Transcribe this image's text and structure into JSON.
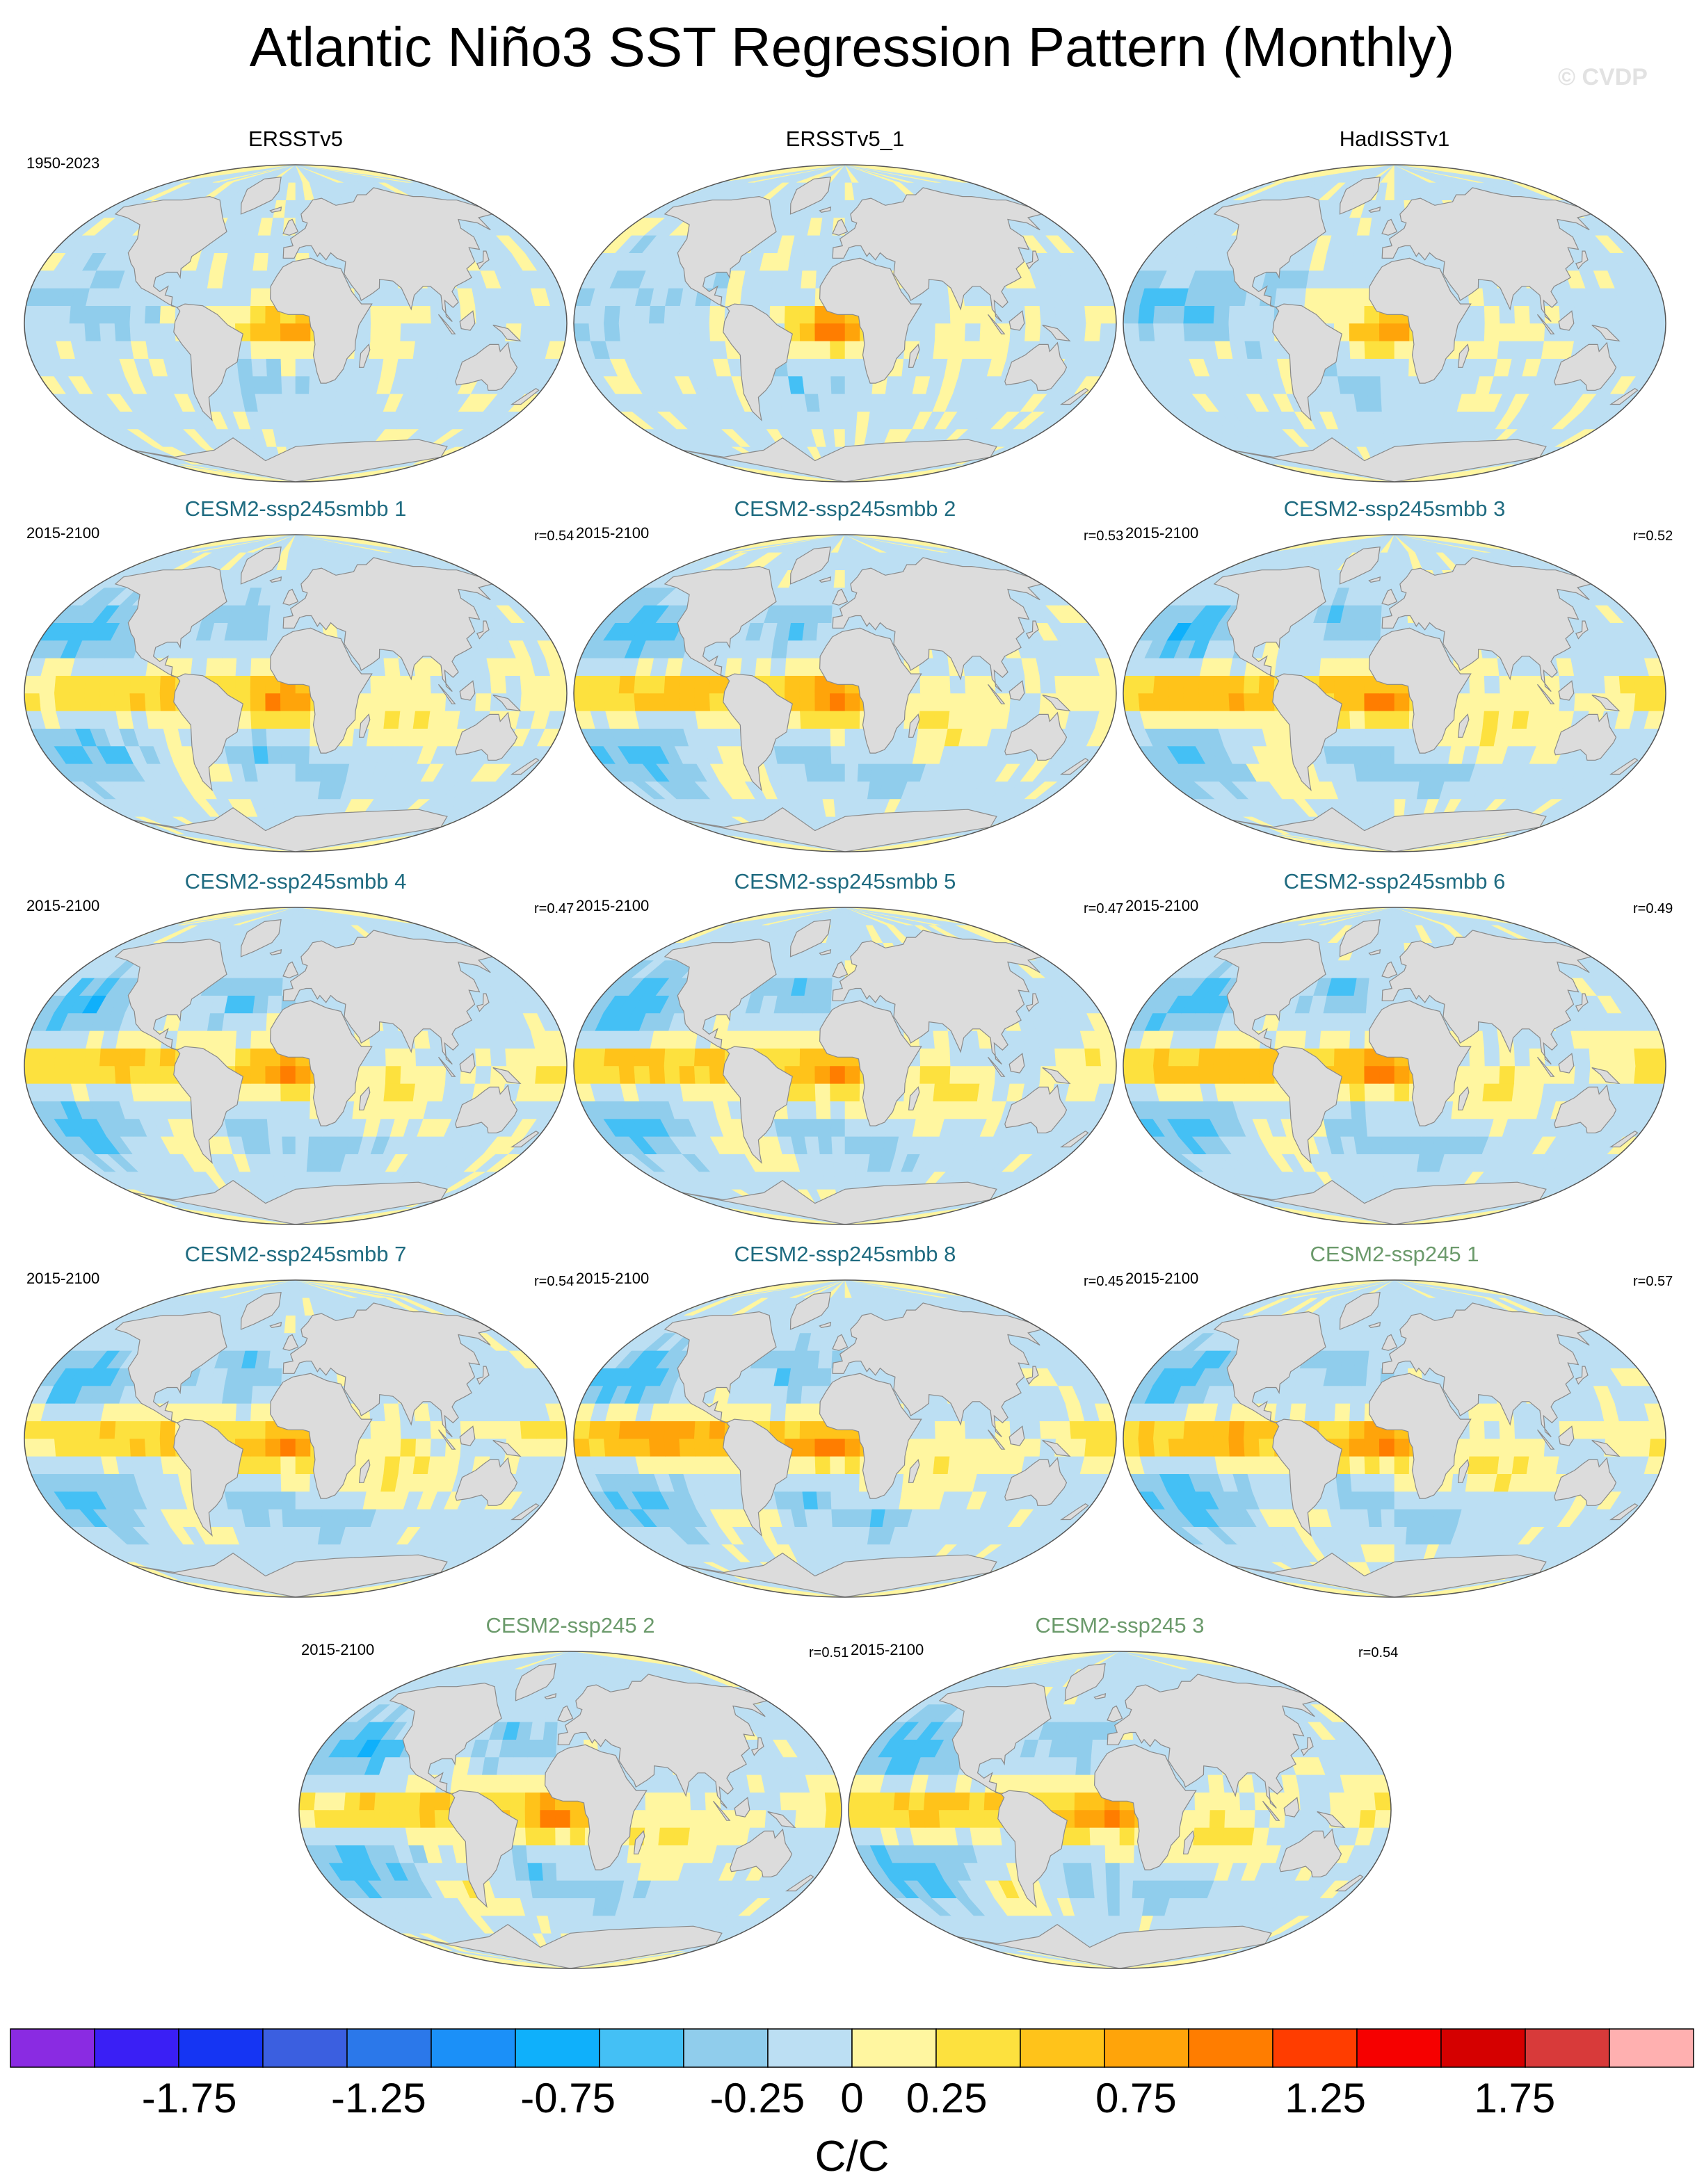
{
  "title": "Atlantic Niño3 SST Regression Pattern (Monthly)",
  "copyright": "© CVDP",
  "colors": {
    "observed_title": "#000000",
    "smbb_title": "#1f6b80",
    "ssp245_title": "#6b9a6b",
    "land": "#dcdcdc",
    "coast": "#8a8a8a"
  },
  "panels": [
    {
      "title": "ERSSTv5",
      "period": "1950-2023",
      "r": "",
      "group": "obs",
      "variant": 0
    },
    {
      "title": "ERSSTv5_1",
      "period": "",
      "r": "",
      "group": "obs",
      "variant": 1
    },
    {
      "title": "HadISSTv1",
      "period": "",
      "r": "",
      "group": "obs",
      "variant": 2
    },
    {
      "title": "CESM2-ssp245smbb 1",
      "period": "2015-2100",
      "r": "r=0.54",
      "group": "smbb",
      "variant": 3
    },
    {
      "title": "CESM2-ssp245smbb 2",
      "period": "2015-2100",
      "r": "r=0.53",
      "group": "smbb",
      "variant": 4
    },
    {
      "title": "CESM2-ssp245smbb 3",
      "period": "2015-2100",
      "r": "r=0.52",
      "group": "smbb",
      "variant": 5
    },
    {
      "title": "CESM2-ssp245smbb 4",
      "period": "2015-2100",
      "r": "r=0.47",
      "group": "smbb",
      "variant": 6
    },
    {
      "title": "CESM2-ssp245smbb 5",
      "period": "2015-2100",
      "r": "r=0.47",
      "group": "smbb",
      "variant": 7
    },
    {
      "title": "CESM2-ssp245smbb 6",
      "period": "2015-2100",
      "r": "r=0.49",
      "group": "smbb",
      "variant": 8
    },
    {
      "title": "CESM2-ssp245smbb 7",
      "period": "2015-2100",
      "r": "r=0.54",
      "group": "smbb",
      "variant": 9
    },
    {
      "title": "CESM2-ssp245smbb 8",
      "period": "2015-2100",
      "r": "r=0.45",
      "group": "smbb",
      "variant": 10
    },
    {
      "title": "CESM2-ssp245 1",
      "period": "2015-2100",
      "r": "r=0.57",
      "group": "ssp245",
      "variant": 11
    },
    {
      "title": "CESM2-ssp245 2",
      "period": "2015-2100",
      "r": "r=0.51",
      "group": "ssp245",
      "variant": 12
    },
    {
      "title": "CESM2-ssp245 3",
      "period": "2015-2100",
      "r": "r=0.54",
      "group": "ssp245",
      "variant": 13
    }
  ],
  "colorbar": {
    "unit_label": "C/C",
    "tick_labels": [
      "-1.75",
      "-1.25",
      "-0.75",
      "-0.25",
      "0",
      "0.25",
      "0.75",
      "1.25",
      "1.75"
    ],
    "tick_values": [
      -1.75,
      -1.25,
      -0.75,
      -0.25,
      0,
      0.25,
      0.75,
      1.25,
      1.75
    ],
    "boundaries": [
      -2,
      -1.75,
      -1.5,
      -1.25,
      -1,
      -0.75,
      -0.5,
      -0.25,
      0,
      0.25,
      0.5,
      0.75,
      1,
      1.25,
      1.5,
      1.75,
      2
    ],
    "colors": [
      "#8a2be2",
      "#3a1ff5",
      "#1535f3",
      "#3b5fe0",
      "#2b78ea",
      "#1b90f8",
      "#0fb0fb",
      "#44c0f5",
      "#90cdec",
      "#bcdff3",
      "#fff6a0",
      "#fde13e",
      "#ffc31a",
      "#ffa40a",
      "#ff7d00",
      "#ff3d00",
      "#f60000",
      "#d50000",
      "#d83a3a",
      "#ffb0b0"
    ]
  }
}
